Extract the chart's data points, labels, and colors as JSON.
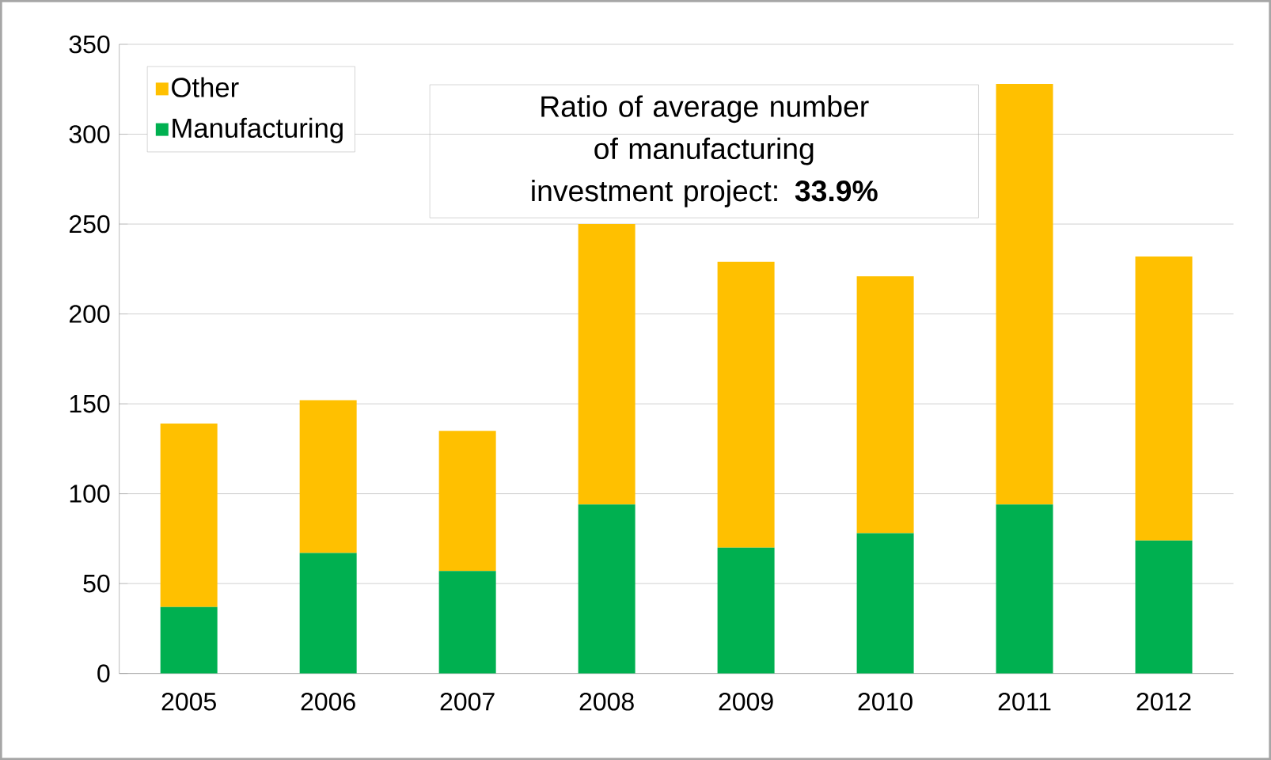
{
  "chart_data": {
    "type": "bar",
    "stacked": true,
    "categories": [
      "2005",
      "2006",
      "2007",
      "2008",
      "2009",
      "2010",
      "2011",
      "2012"
    ],
    "series": [
      {
        "name": "Manufacturing",
        "color": "#00b050",
        "values": [
          37,
          67,
          57,
          94,
          70,
          78,
          94,
          74
        ]
      },
      {
        "name": "Other",
        "color": "#ffc000",
        "values": [
          102,
          85,
          78,
          156,
          159,
          143,
          234,
          158
        ]
      }
    ],
    "ylim": [
      0,
      350
    ],
    "yticks": [
      0,
      50,
      100,
      150,
      200,
      250,
      300,
      350
    ],
    "grid": "y",
    "legend": "top left",
    "annotations": [
      "Ratio of average number of manufacturing investment project: **33.9%**"
    ]
  }
}
